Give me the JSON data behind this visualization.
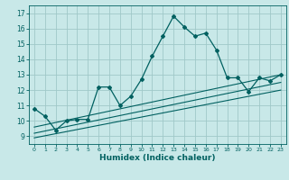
{
  "xlabel": "Humidex (Indice chaleur)",
  "bg_color": "#c8e8e8",
  "grid_color": "#a0c8c8",
  "line_color": "#006060",
  "xlim": [
    -0.5,
    23.5
  ],
  "ylim": [
    8.5,
    17.5
  ],
  "xticks": [
    0,
    1,
    2,
    3,
    4,
    5,
    6,
    7,
    8,
    9,
    10,
    11,
    12,
    13,
    14,
    15,
    16,
    17,
    18,
    19,
    20,
    21,
    22,
    23
  ],
  "yticks": [
    9,
    10,
    11,
    12,
    13,
    14,
    15,
    16,
    17
  ],
  "main_x": [
    0,
    1,
    2,
    3,
    4,
    5,
    6,
    7,
    8,
    9,
    10,
    11,
    12,
    13,
    14,
    15,
    16,
    17,
    18,
    19,
    20,
    21,
    22,
    23
  ],
  "main_y": [
    10.8,
    10.3,
    9.4,
    10.0,
    10.1,
    10.1,
    12.2,
    12.2,
    11.0,
    11.6,
    12.7,
    14.2,
    15.5,
    16.8,
    16.1,
    15.5,
    15.7,
    14.6,
    12.8,
    12.8,
    11.9,
    12.8,
    12.6,
    13.0
  ],
  "line1_x": [
    0,
    23
  ],
  "line1_y": [
    9.6,
    13.0
  ],
  "line2_x": [
    0,
    23
  ],
  "line2_y": [
    9.2,
    12.5
  ],
  "line3_x": [
    0,
    23
  ],
  "line3_y": [
    8.9,
    12.0
  ]
}
